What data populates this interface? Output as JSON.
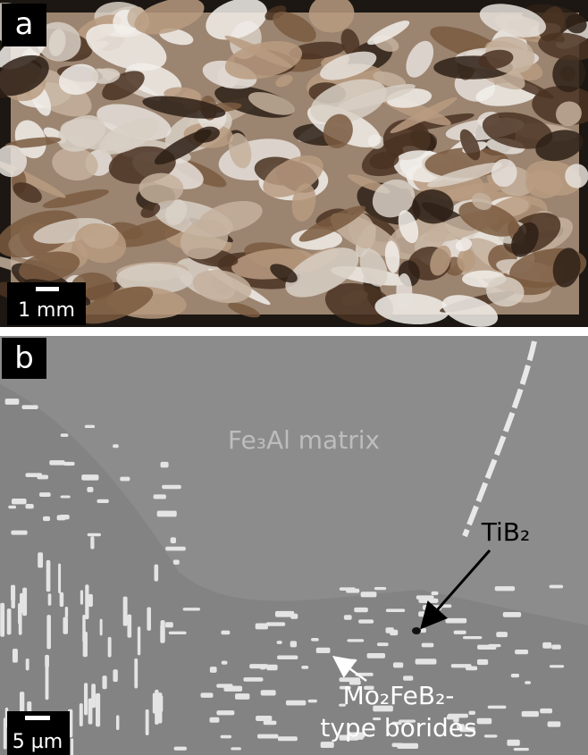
{
  "panels": [
    {
      "letter": "a",
      "scale_bar": "1 mm"
    },
    {
      "letter": "b",
      "scale_bar": "5 µm",
      "labels": {
        "matrix": "Fe₃Al matrix",
        "particle": "TiB₂",
        "borides_line1": "Mo₂FeB₂-",
        "borides_line2": "type borides"
      }
    }
  ]
}
